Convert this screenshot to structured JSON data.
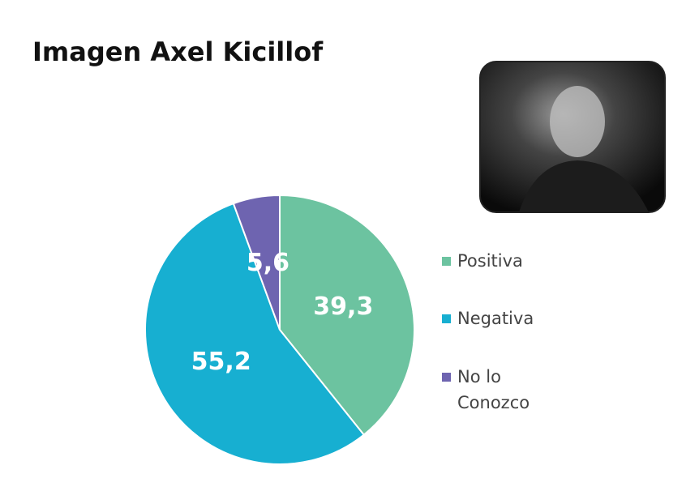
{
  "chart_data": {
    "type": "pie",
    "title": "Imagen Axel Kicillof",
    "categories": [
      "Positiva",
      "Negativa",
      "No lo Conozco"
    ],
    "values": [
      39.3,
      55.2,
      5.6
    ],
    "value_labels": [
      "39,3",
      "55,2",
      "5,6"
    ],
    "colors": [
      "#6cc3a0",
      "#17afd1",
      "#6e64b0"
    ],
    "legend": "right"
  }
}
